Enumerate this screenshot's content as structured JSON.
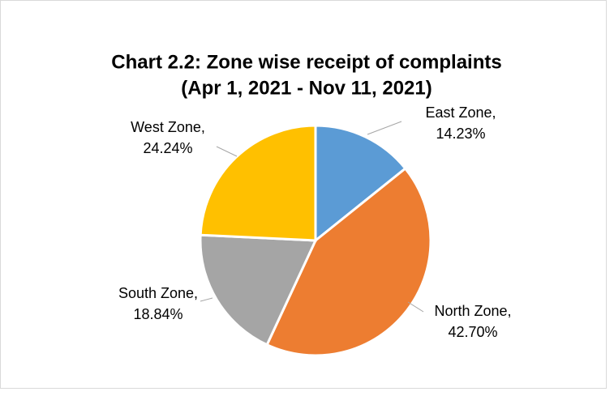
{
  "chart_data": {
    "type": "pie",
    "title": [
      "Chart 2.2: Zone wise receipt of complaints",
      "(Apr 1, 2021 - Nov 11, 2021)"
    ],
    "categories": [
      "East Zone,",
      "North Zone,",
      "South Zone,",
      "West Zone,"
    ],
    "values": [
      14.23,
      42.7,
      18.84,
      24.24
    ],
    "value_labels": [
      "14.23%",
      "42.70%",
      "18.84%",
      "24.24%"
    ],
    "colors": [
      "#5b9bd5",
      "#ed7d31",
      "#a5a5a5",
      "#ffc000"
    ]
  }
}
